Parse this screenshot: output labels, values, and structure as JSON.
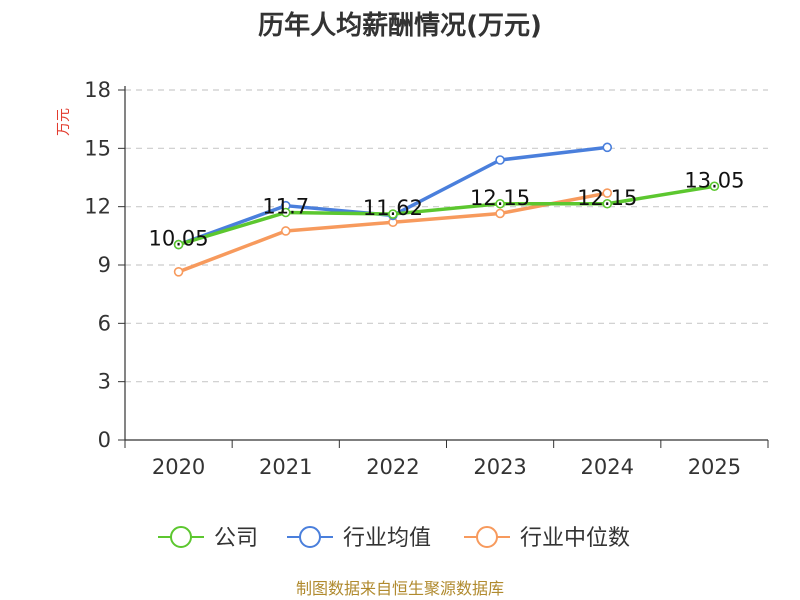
{
  "chart_data": {
    "type": "line",
    "title": "历年人均薪酬情况(万元)",
    "xlabel": "",
    "ylabel": "万元",
    "categories": [
      "2020",
      "2021",
      "2022",
      "2023",
      "2024",
      "2025"
    ],
    "ylim": [
      0,
      18
    ],
    "yticks": [
      0,
      3,
      6,
      9,
      12,
      15,
      18
    ],
    "grid": true,
    "legend_position": "bottom",
    "series": [
      {
        "name": "公司",
        "color": "#5cc72f",
        "values": [
          10.05,
          11.7,
          11.62,
          12.15,
          12.15,
          13.05
        ],
        "show_labels": true
      },
      {
        "name": "行业均值",
        "color": "#4a7fdc",
        "values": [
          10.05,
          12.05,
          11.55,
          14.4,
          15.05,
          null
        ],
        "show_labels": false
      },
      {
        "name": "行业中位数",
        "color": "#f79a5d",
        "values": [
          8.65,
          10.75,
          11.2,
          11.65,
          12.7,
          null
        ],
        "show_labels": false
      }
    ]
  },
  "ylabel_color": "#e23b2e",
  "source_text": "制图数据来自恒生聚源数据库",
  "source_color": "#b08a2e"
}
